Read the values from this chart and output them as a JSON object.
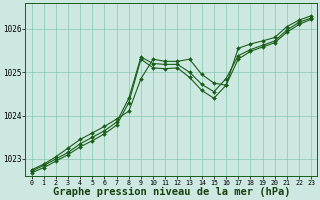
{
  "background_color": "#cce8e0",
  "grid_color": "#88c8b0",
  "line_color": "#1a5e1a",
  "marker_color": "#1a5e1a",
  "xlabel": "Graphe pression niveau de la mer (hPa)",
  "xlabel_fontsize": 7.5,
  "xlim": [
    -0.5,
    23.5
  ],
  "ylim": [
    1022.6,
    1026.6
  ],
  "yticks": [
    1023,
    1024,
    1025,
    1026
  ],
  "xticks": [
    0,
    1,
    2,
    3,
    4,
    5,
    6,
    7,
    8,
    9,
    10,
    11,
    12,
    13,
    14,
    15,
    16,
    17,
    18,
    19,
    20,
    21,
    22,
    23
  ],
  "series": [
    {
      "x": [
        0,
        1,
        2,
        3,
        4,
        5,
        6,
        7,
        8,
        9,
        10,
        11,
        12,
        13,
        14,
        15,
        16,
        17,
        18,
        19,
        20,
        21,
        22,
        23
      ],
      "y": [
        1022.75,
        1022.88,
        1023.05,
        1023.25,
        1023.45,
        1023.6,
        1023.75,
        1023.92,
        1024.1,
        1024.85,
        1025.3,
        1025.25,
        1025.25,
        1025.3,
        1024.95,
        1024.75,
        1024.7,
        1025.55,
        1025.65,
        1025.72,
        1025.8,
        1026.05,
        1026.2,
        1026.3
      ]
    },
    {
      "x": [
        0,
        1,
        2,
        3,
        4,
        5,
        6,
        7,
        8,
        9,
        10,
        11,
        12,
        13,
        14,
        15,
        16,
        17,
        18,
        19,
        20,
        21,
        22,
        23
      ],
      "y": [
        1022.72,
        1022.85,
        1023.0,
        1023.15,
        1023.35,
        1023.5,
        1023.65,
        1023.85,
        1024.4,
        1025.35,
        1025.2,
        1025.18,
        1025.18,
        1025.0,
        1024.72,
        1024.55,
        1024.85,
        1025.38,
        1025.52,
        1025.62,
        1025.72,
        1025.97,
        1026.15,
        1026.25
      ]
    },
    {
      "x": [
        0,
        1,
        2,
        3,
        4,
        5,
        6,
        7,
        8,
        9,
        10,
        11,
        12,
        13,
        14,
        15,
        16,
        17,
        18,
        19,
        20,
        21,
        22,
        23
      ],
      "y": [
        1022.68,
        1022.8,
        1022.95,
        1023.1,
        1023.28,
        1023.42,
        1023.58,
        1023.78,
        1024.3,
        1025.3,
        1025.1,
        1025.08,
        1025.1,
        1024.88,
        1024.58,
        1024.4,
        1024.7,
        1025.3,
        1025.48,
        1025.58,
        1025.68,
        1025.92,
        1026.1,
        1026.22
      ]
    }
  ]
}
